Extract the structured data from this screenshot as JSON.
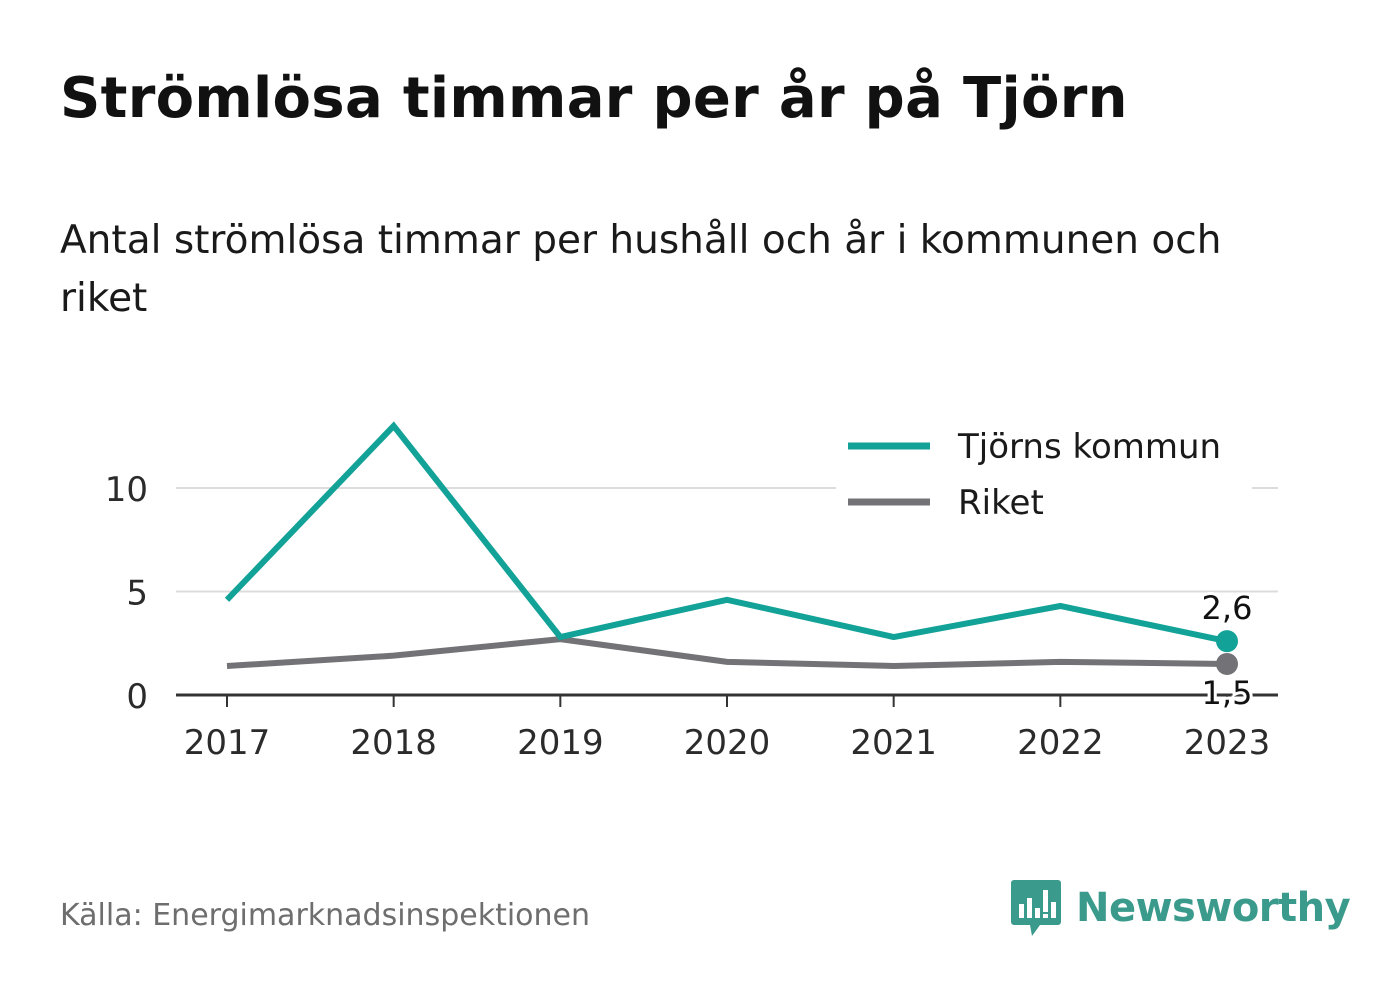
{
  "title": "Strömlösa timmar per år på Tjörn",
  "subtitle": "Antal strömlösa timmar per hushåll och år i kommunen och riket",
  "source": "Källa: Energimarknadsinspektionen",
  "brand": {
    "name": "Newsworthy",
    "icon": "newsworthy-logo-icon",
    "color": "#3a9a8c"
  },
  "chart_data": {
    "type": "line",
    "x": [
      "2017",
      "2018",
      "2019",
      "2020",
      "2021",
      "2022",
      "2023"
    ],
    "series": [
      {
        "name": "Tjörns kommun",
        "color": "#12a297",
        "values": [
          4.6,
          13.0,
          2.8,
          4.6,
          2.8,
          4.3,
          2.6
        ],
        "end_label": "2,6"
      },
      {
        "name": "Riket",
        "color": "#737276",
        "values": [
          1.4,
          1.9,
          2.7,
          1.6,
          1.4,
          1.6,
          1.5
        ],
        "end_label": "1,5"
      }
    ],
    "yticks": [
      0,
      5,
      10
    ],
    "ylim": [
      0,
      13
    ],
    "grid": true,
    "legend_position": "top-right"
  }
}
